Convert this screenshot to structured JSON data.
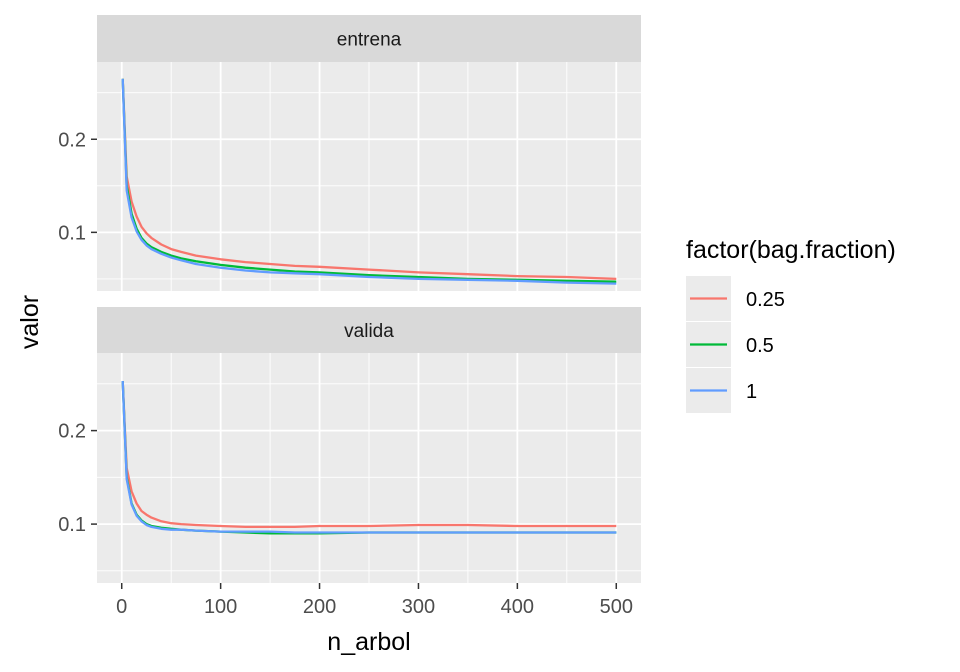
{
  "chart_data": {
    "type": "line",
    "x_label": "n_arbol",
    "y_label": "valor",
    "xlim": [
      -25,
      525
    ],
    "x_ticks": [
      0,
      100,
      200,
      300,
      400,
      500
    ],
    "x_tick_labels": [
      "0",
      "100",
      "200",
      "300",
      "400",
      "500"
    ],
    "y_ticks": [
      0.1,
      0.2
    ],
    "y_tick_labels": [
      "0.1",
      "0.2"
    ],
    "grid": true,
    "legend": {
      "title": "factor(bag.fraction)",
      "position": "right",
      "entries": [
        "0.25",
        "0.5",
        "1"
      ]
    },
    "colors": {
      "0.25": "#F8766D",
      "0.5": "#00BA38",
      "1": "#619CFF"
    },
    "x": [
      1,
      5,
      10,
      15,
      20,
      25,
      30,
      40,
      50,
      60,
      75,
      100,
      125,
      150,
      175,
      200,
      250,
      300,
      350,
      400,
      450,
      500
    ],
    "panels": [
      {
        "strip": "entrena",
        "ylim": [
          0.037,
          0.283
        ],
        "series": [
          {
            "name": "0.25",
            "values": [
              0.265,
              0.16,
              0.133,
              0.117,
              0.106,
              0.099,
              0.094,
              0.087,
              0.082,
              0.079,
              0.075,
              0.071,
              0.068,
              0.066,
              0.064,
              0.063,
              0.06,
              0.057,
              0.055,
              0.053,
              0.052,
              0.05
            ]
          },
          {
            "name": "0.5",
            "values": [
              0.265,
              0.15,
              0.12,
              0.104,
              0.094,
              0.088,
              0.084,
              0.079,
              0.075,
              0.072,
              0.069,
              0.065,
              0.062,
              0.06,
              0.058,
              0.057,
              0.054,
              0.052,
              0.05,
              0.049,
              0.048,
              0.047
            ]
          },
          {
            "name": "1",
            "values": [
              0.265,
              0.145,
              0.116,
              0.101,
              0.092,
              0.086,
              0.082,
              0.077,
              0.073,
              0.07,
              0.066,
              0.062,
              0.059,
              0.057,
              0.056,
              0.055,
              0.052,
              0.05,
              0.049,
              0.048,
              0.046,
              0.045
            ]
          }
        ]
      },
      {
        "strip": "valida",
        "ylim": [
          0.037,
          0.283
        ],
        "series": [
          {
            "name": "0.25",
            "values": [
              0.253,
              0.16,
              0.135,
              0.122,
              0.114,
              0.11,
              0.107,
              0.103,
              0.101,
              0.1,
              0.099,
              0.098,
              0.097,
              0.097,
              0.097,
              0.098,
              0.098,
              0.099,
              0.099,
              0.098,
              0.098,
              0.098
            ]
          },
          {
            "name": "0.5",
            "values": [
              0.253,
              0.15,
              0.122,
              0.11,
              0.104,
              0.1,
              0.098,
              0.096,
              0.095,
              0.094,
              0.093,
              0.092,
              0.091,
              0.09,
              0.09,
              0.09,
              0.091,
              0.091,
              0.091,
              0.091,
              0.091,
              0.091
            ]
          },
          {
            "name": "1",
            "values": [
              0.253,
              0.148,
              0.121,
              0.109,
              0.103,
              0.099,
              0.097,
              0.095,
              0.094,
              0.094,
              0.093,
              0.092,
              0.092,
              0.092,
              0.091,
              0.091,
              0.091,
              0.091,
              0.091,
              0.091,
              0.091,
              0.091
            ]
          }
        ]
      }
    ]
  }
}
